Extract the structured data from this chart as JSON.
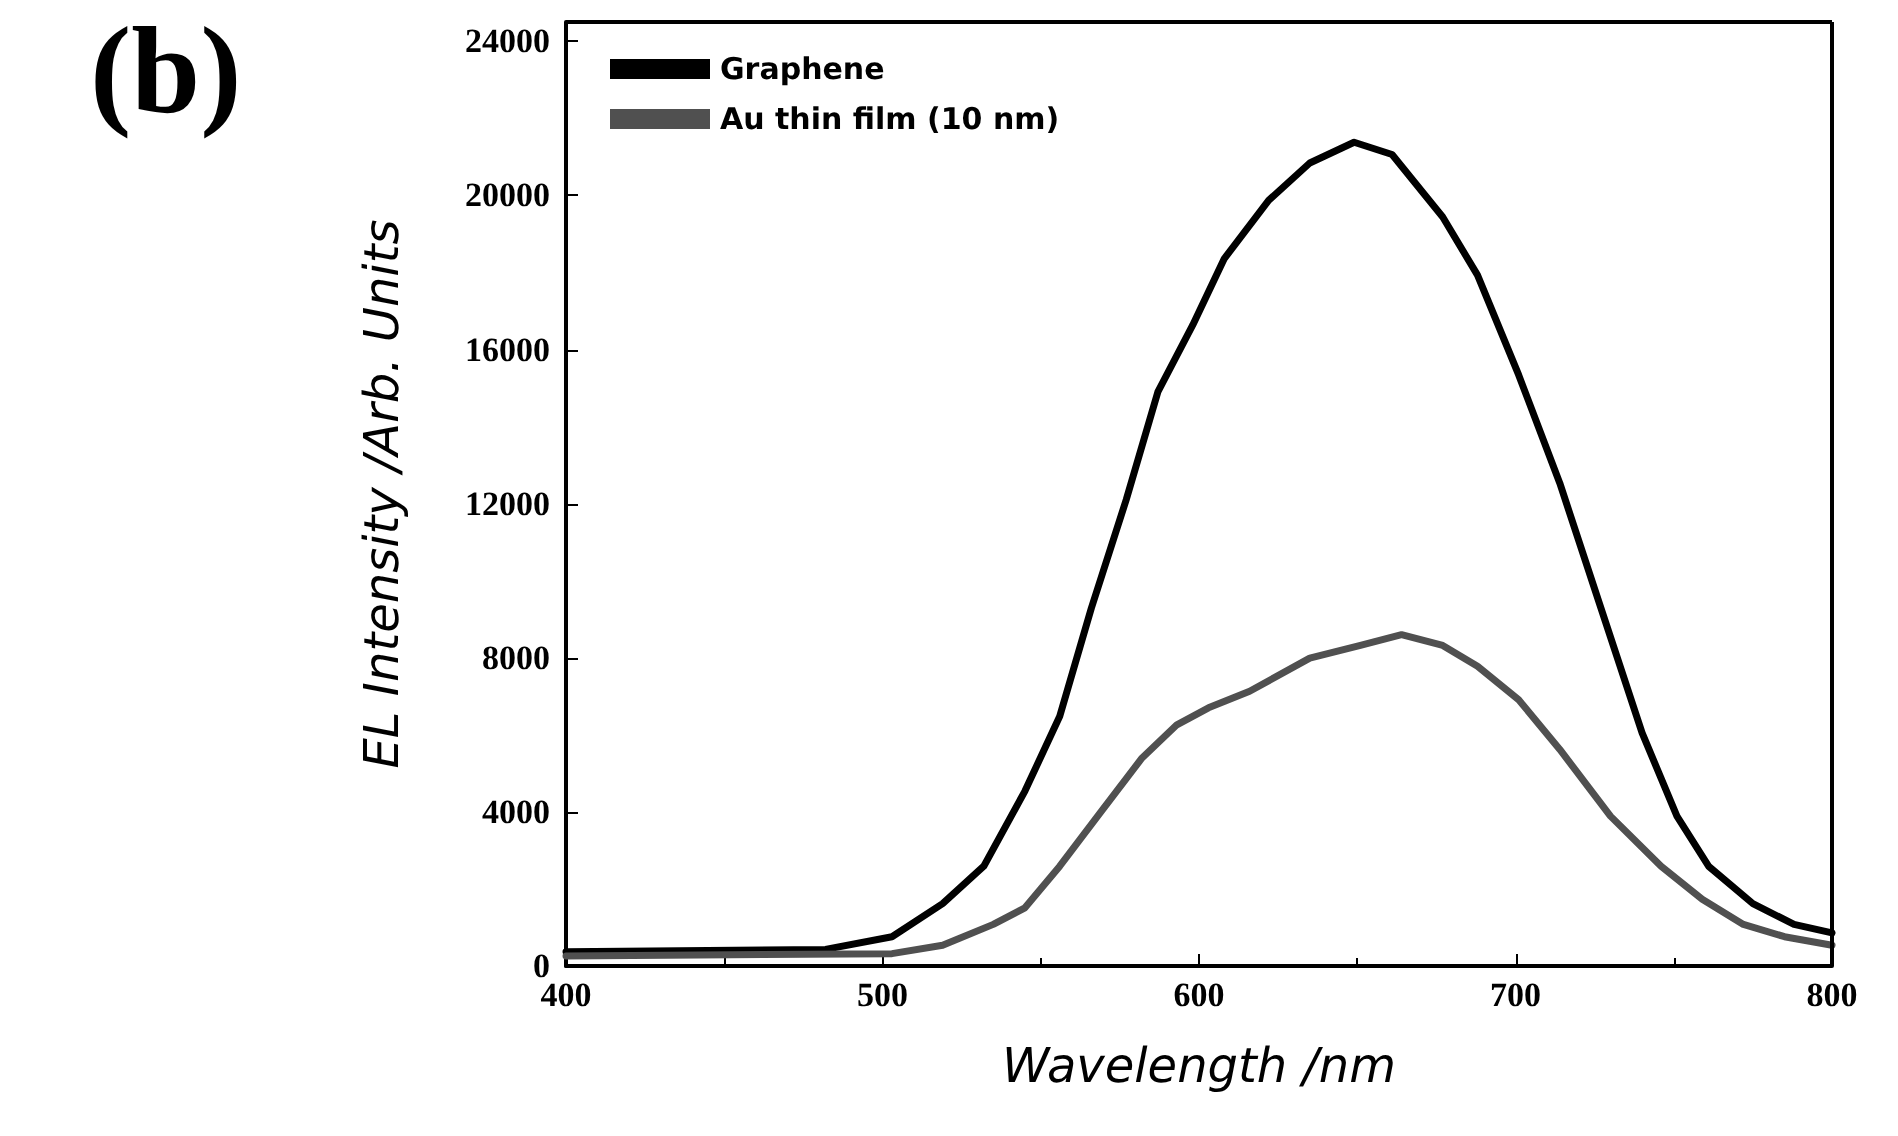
{
  "chart_data": {
    "type": "line",
    "title": "(b)",
    "xlabel": "Wavelength /nm",
    "ylabel": "EL Intensity /Arb. Units",
    "xlim": [
      400,
      800
    ],
    "xticks": [
      400,
      500,
      600,
      700,
      800
    ],
    "ylim": [
      0,
      24500
    ],
    "yticks": [
      0,
      4000,
      8000,
      12000,
      16000,
      20000,
      24000
    ],
    "grid": false,
    "legend": "top left",
    "marker": "none",
    "line_style": "solid",
    "series": [
      {
        "name": "Graphene",
        "color": "#000000",
        "x": [
          400,
          482,
          503,
          519,
          532,
          545,
          556,
          566,
          577,
          587,
          598,
          608,
          622,
          635,
          649,
          661,
          677,
          688,
          701,
          714,
          727,
          740,
          751,
          761,
          775,
          788,
          800
        ],
        "values": [
          370,
          430,
          760,
          1620,
          2590,
          4540,
          6480,
          9290,
          12100,
          14900,
          16630,
          18360,
          19870,
          20840,
          21380,
          21060,
          19440,
          17930,
          15340,
          12530,
          9290,
          6050,
          3890,
          2590,
          1620,
          1080,
          860
        ]
      },
      {
        "name": "Au thin film (10 nm)",
        "color": "#505050",
        "x": [
          400,
          503,
          519,
          535,
          545,
          556,
          569,
          582,
          593,
          603,
          616,
          635,
          651,
          664,
          677,
          688,
          701,
          714,
          730,
          746,
          759,
          772,
          785,
          800
        ],
        "values": [
          260,
          320,
          540,
          1080,
          1510,
          2590,
          4000,
          5400,
          6260,
          6700,
          7130,
          7990,
          8320,
          8600,
          8320,
          7780,
          6910,
          5620,
          3890,
          2590,
          1730,
          1080,
          760,
          540
        ]
      }
    ]
  }
}
